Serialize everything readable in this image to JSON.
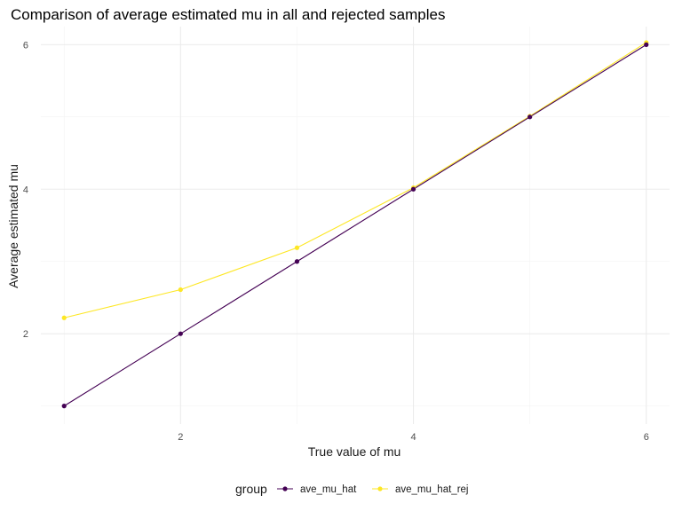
{
  "chart_data": {
    "type": "line",
    "title": "Comparison of average estimated mu in all and rejected samples",
    "xlabel": "True value of mu",
    "ylabel": "Average estimated mu",
    "xlim": [
      0.8,
      6.2
    ],
    "ylim": [
      0.75,
      6.25
    ],
    "x_ticks": [
      2,
      4,
      6
    ],
    "y_ticks": [
      2,
      4,
      6
    ],
    "x_minor": [
      1,
      3,
      5
    ],
    "y_minor": [
      1,
      3,
      5
    ],
    "grid": true,
    "x": [
      1,
      2,
      3,
      4,
      5,
      6
    ],
    "series": [
      {
        "name": "ave_mu_hat",
        "color": "#440154",
        "values": [
          1.0,
          2.0,
          3.0,
          4.0,
          5.0,
          6.0
        ]
      },
      {
        "name": "ave_mu_hat_rej",
        "color": "#FDE725",
        "values": [
          2.22,
          2.61,
          3.19,
          4.02,
          5.01,
          6.03
        ]
      }
    ],
    "legend": {
      "title": "group",
      "position": "bottom"
    }
  }
}
